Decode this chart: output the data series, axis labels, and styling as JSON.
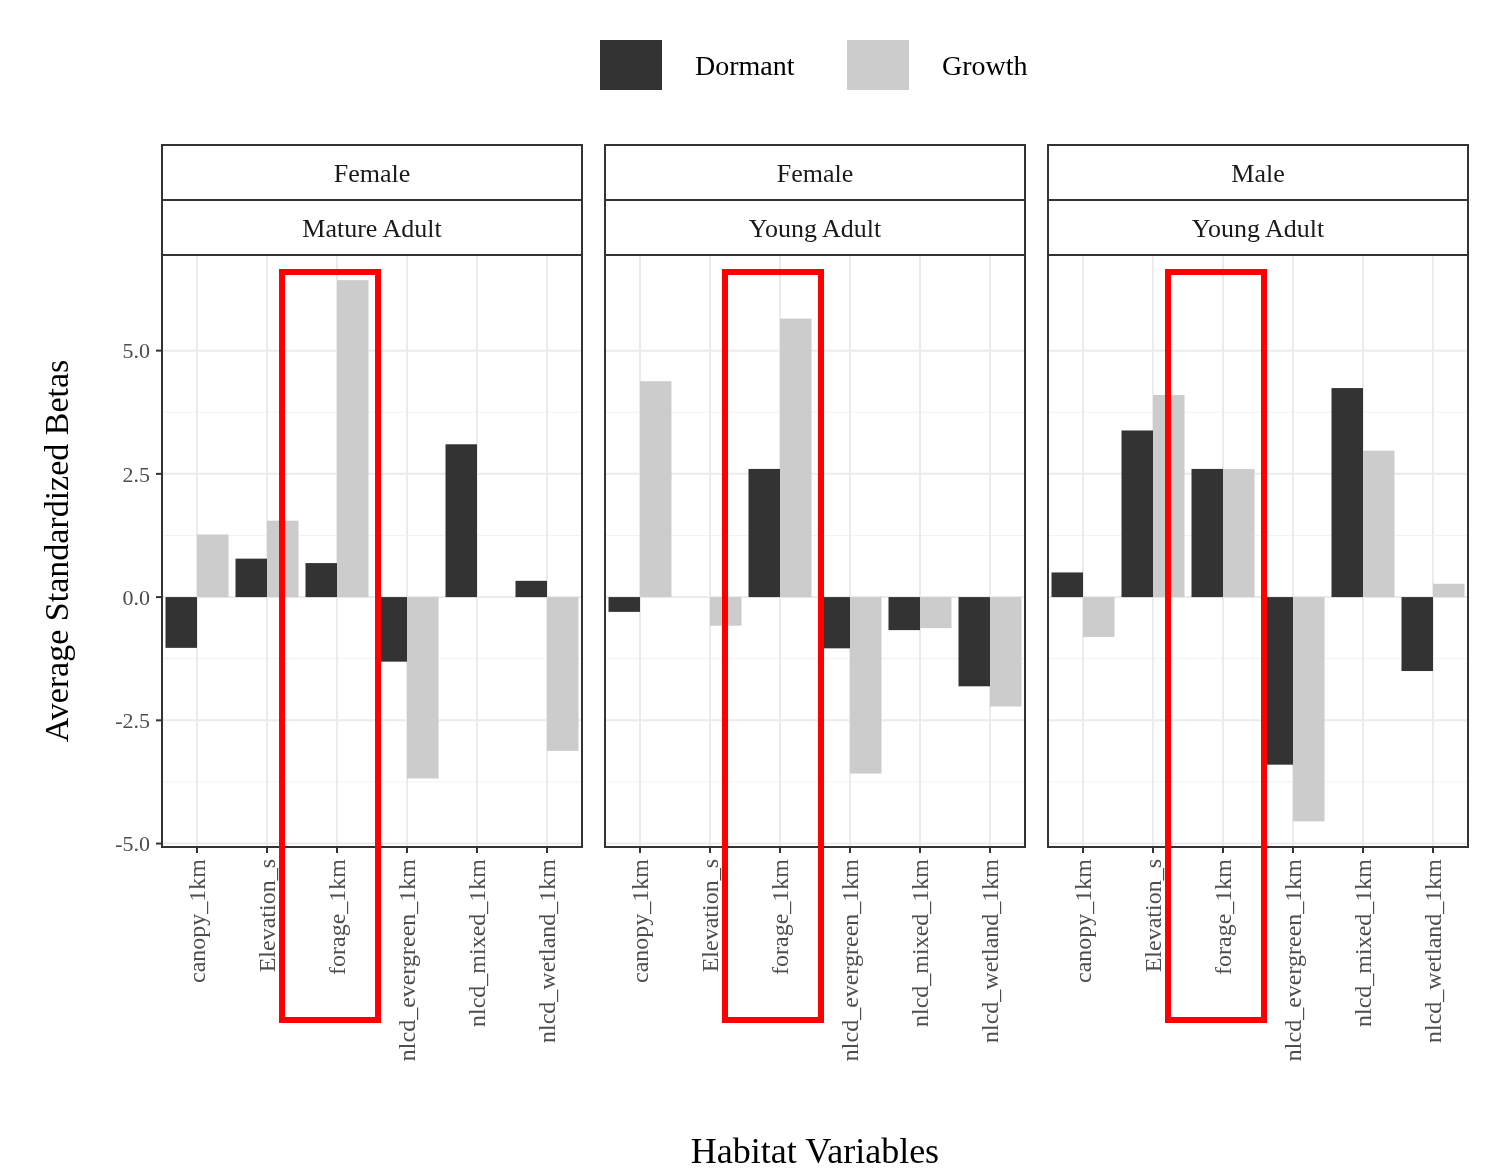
{
  "chart_data": [
    {
      "type": "bar",
      "title": "Female",
      "subtitle": "Mature Adult",
      "ylabel": "Average Standardized Betas",
      "categories": [
        "canopy_1km",
        "Elevation_s",
        "forage_1km",
        "nlcd_evergreen_1km",
        "nlcd_mixed_1km",
        "nlcd_wetland_1km"
      ],
      "series": [
        {
          "name": "Dormant",
          "color": "#333333",
          "values": [
            -1.03,
            0.78,
            0.69,
            -1.31,
            3.1,
            0.33
          ]
        },
        {
          "name": "Growth",
          "color": "#cccccc",
          "values": [
            1.27,
            1.55,
            6.43,
            -3.68,
            null,
            -3.12
          ]
        }
      ],
      "ylim": [
        -5.07,
        6.94
      ],
      "yticks": [
        {
          "value": -5,
          "label": "-5.0"
        },
        -2.5,
        {
          "value": 0,
          "label": "0.0"
        },
        2.5,
        {
          "value": 5,
          "label": "5.0"
        }
      ],
      "grid": true,
      "legend": "top"
    },
    {
      "type": "bar",
      "title": "Female",
      "subtitle": "Young Adult",
      "xlabel": "Habitat Variables",
      "categories": [
        "canopy_1km",
        "Elevation_s",
        "forage_1km",
        "nlcd_evergreen_1km",
        "nlcd_mixed_1km",
        "nlcd_wetland_1km"
      ],
      "series": [
        {
          "color": "#333333",
          "values": [
            -0.3,
            null,
            2.6,
            -1.04,
            -0.67,
            -1.81
          ]
        },
        {
          "color": "#cccccc",
          "values": [
            4.38,
            -0.58,
            5.65,
            -3.58,
            -0.63,
            -2.22
          ]
        }
      ],
      "ylim": [
        -5.07,
        6.94
      ],
      "grid": true,
      "tick_labels": "x"
    },
    {
      "type": "bar",
      "title": "Male",
      "subtitle": "Young Adult",
      "categories": [
        "canopy_1km",
        "Elevation_s",
        "forage_1km",
        "nlcd_evergreen_1km",
        "nlcd_mixed_1km",
        "nlcd_wetland_1km"
      ],
      "series": [
        {
          "color": "#333333",
          "values": [
            0.5,
            3.38,
            2.6,
            -3.4,
            4.24,
            -1.5
          ]
        },
        {
          "color": "#cccccc",
          "values": [
            -0.81,
            4.1,
            2.6,
            -4.55,
            2.97,
            0.27
          ]
        }
      ],
      "ylim": [
        -5.07,
        6.94
      ],
      "grid": true,
      "tick_labels": "x"
    }
  ]
}
